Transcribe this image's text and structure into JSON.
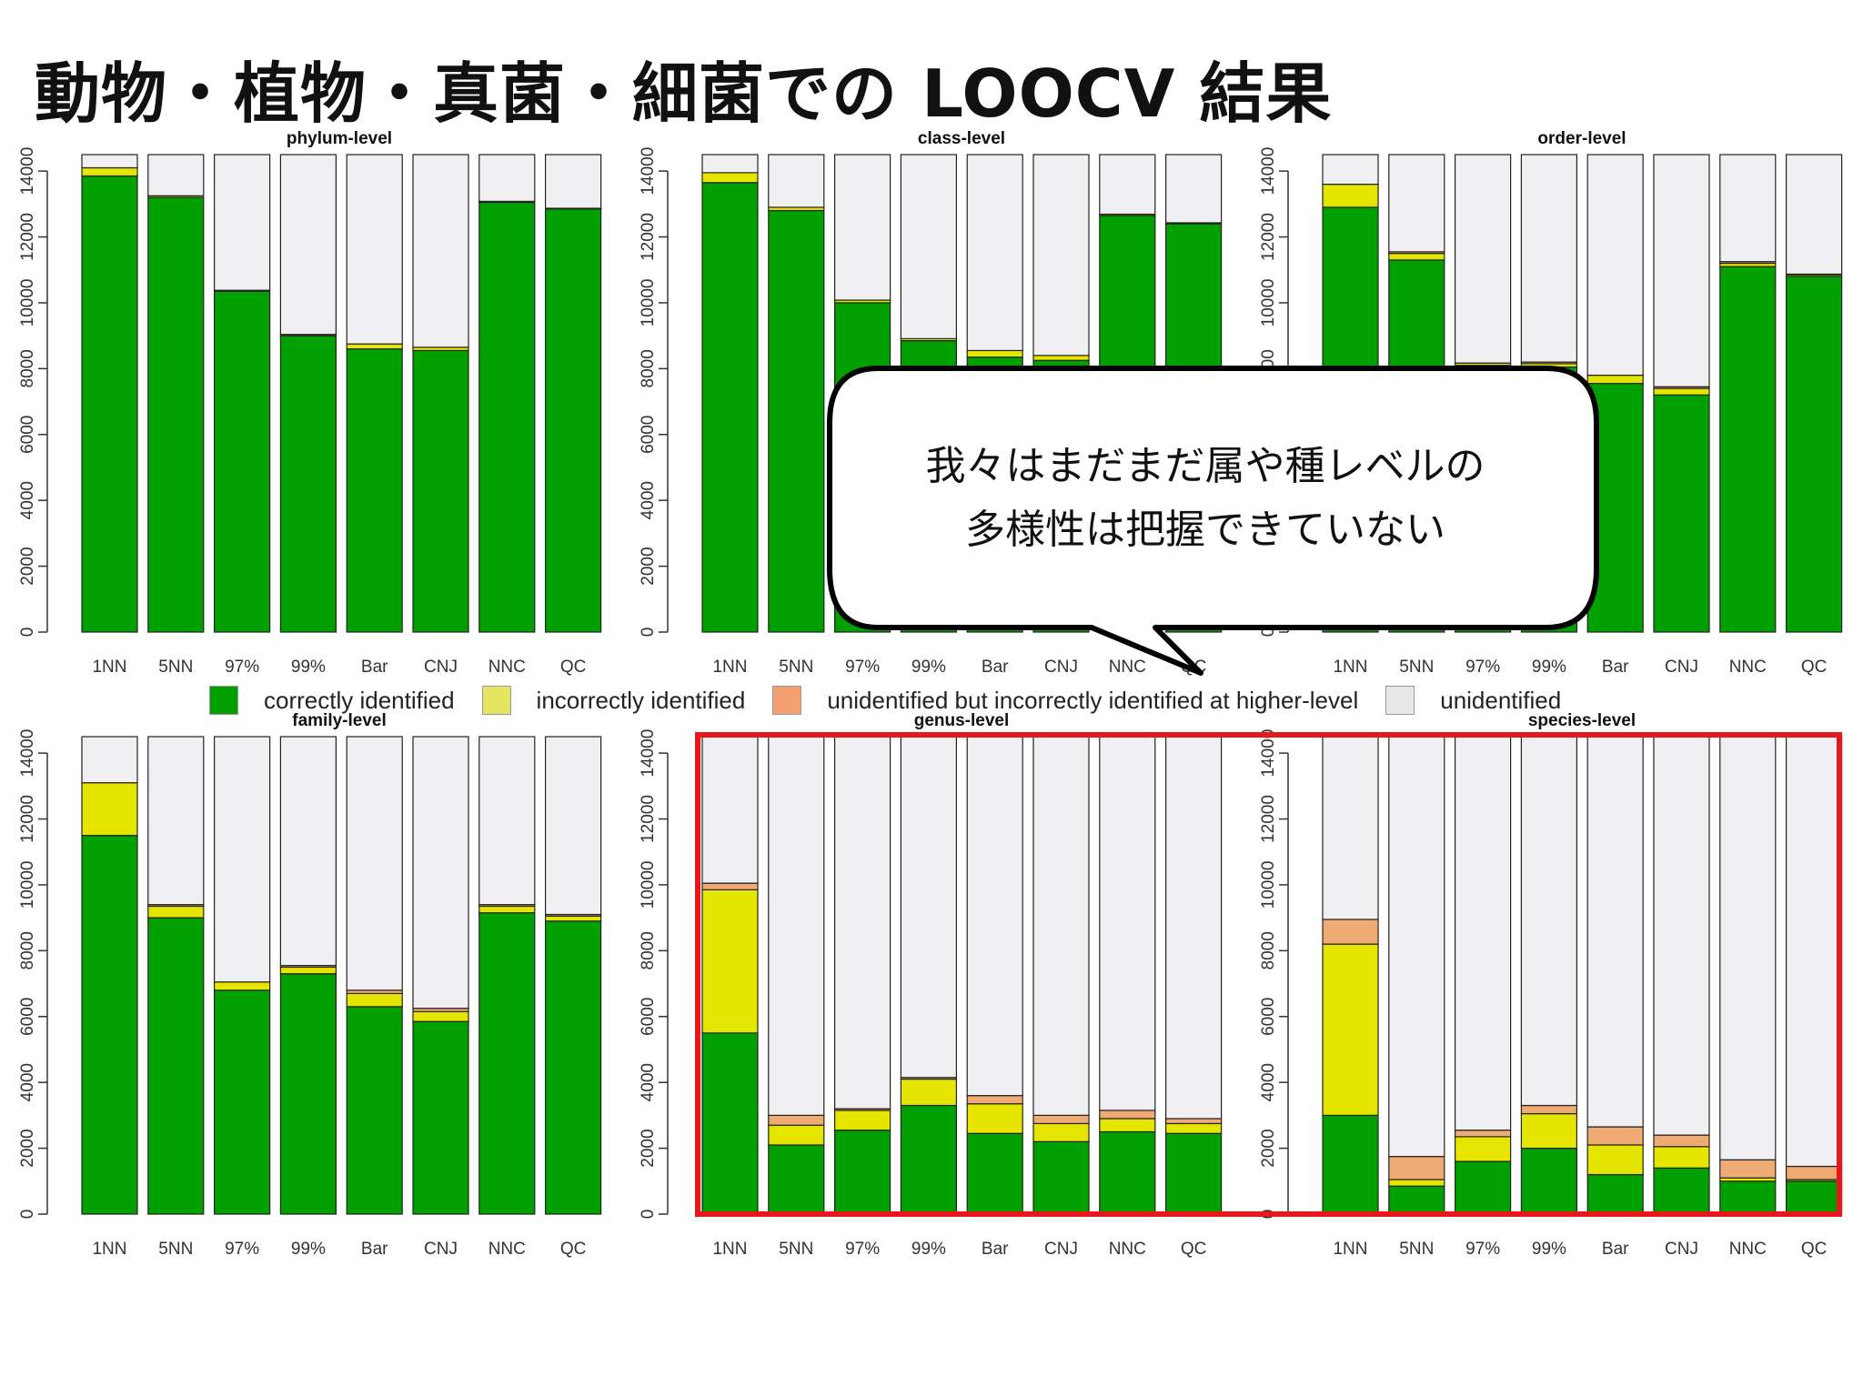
{
  "slide": {
    "title": "動物・植物・真菌・細菌での LOOCV 結果",
    "callout_lines": [
      "我々はまだまだ属や種レベルの",
      "多様性は把握できていない"
    ],
    "highlight_color": "#e8171b"
  },
  "legend": [
    {
      "label": "correctly identified",
      "color": "#00a000"
    },
    {
      "label": "incorrectly identified",
      "color": "#e5e500"
    },
    {
      "label": "unidentified but incorrectly identified at higher-level",
      "color": "#f0aa73"
    },
    {
      "label": "unidentified",
      "color": "#f0eff2"
    }
  ],
  "chart_data": [
    {
      "type": "bar",
      "stacked": true,
      "title": "phylum-level",
      "categories": [
        "1NN",
        "5NN",
        "97%",
        "99%",
        "Bar",
        "CNJ",
        "NNC",
        "QC"
      ],
      "ylim": [
        0,
        14500
      ],
      "yticks": [
        "0",
        "2000",
        "4000",
        "6000",
        "8000",
        "10000",
        "12000",
        "14000"
      ],
      "series": [
        {
          "name": "correctly identified",
          "values": [
            13850,
            13200,
            10350,
            9000,
            8600,
            8550,
            13050,
            12850
          ]
        },
        {
          "name": "incorrectly identified",
          "values": [
            250,
            50,
            30,
            40,
            150,
            100,
            30,
            20
          ]
        },
        {
          "name": "unidentified but incorrectly identified at higher-level",
          "values": [
            0,
            0,
            0,
            0,
            0,
            0,
            0,
            0
          ]
        },
        {
          "name": "unidentified",
          "values": [
            400,
            1250,
            4120,
            5460,
            5750,
            5850,
            1420,
            1630
          ]
        }
      ]
    },
    {
      "type": "bar",
      "stacked": true,
      "title": "class-level",
      "categories": [
        "1NN",
        "5NN",
        "97%",
        "99%",
        "Bar",
        "CNJ",
        "NNC",
        "QC"
      ],
      "ylim": [
        0,
        14500
      ],
      "yticks": [
        "0",
        "2000",
        "4000",
        "6000",
        "8000",
        "10000",
        "12000",
        "14000"
      ],
      "series": [
        {
          "name": "correctly identified",
          "values": [
            13650,
            12800,
            10000,
            8850,
            8350,
            8250,
            12650,
            12400
          ]
        },
        {
          "name": "incorrectly identified",
          "values": [
            300,
            100,
            80,
            60,
            200,
            150,
            40,
            30
          ]
        },
        {
          "name": "unidentified but incorrectly identified at higher-level",
          "values": [
            0,
            0,
            0,
            0,
            0,
            0,
            0,
            0
          ]
        },
        {
          "name": "unidentified",
          "values": [
            550,
            1600,
            4420,
            5590,
            5950,
            6100,
            1810,
            2070
          ]
        }
      ]
    },
    {
      "type": "bar",
      "stacked": true,
      "title": "order-level",
      "categories": [
        "1NN",
        "5NN",
        "97%",
        "99%",
        "Bar",
        "CNJ",
        "NNC",
        "QC"
      ],
      "ylim": [
        0,
        14500
      ],
      "yticks": [
        "0",
        "2000",
        "4000",
        "6000",
        "8000",
        "10000",
        "12000",
        "14000"
      ],
      "series": [
        {
          "name": "correctly identified",
          "values": [
            12900,
            11300,
            8100,
            8050,
            7550,
            7200,
            11100,
            10800
          ]
        },
        {
          "name": "incorrectly identified",
          "values": [
            700,
            200,
            70,
            100,
            250,
            200,
            100,
            50
          ]
        },
        {
          "name": "unidentified but incorrectly identified at higher-level",
          "values": [
            0,
            50,
            0,
            50,
            0,
            50,
            50,
            20
          ]
        },
        {
          "name": "unidentified",
          "values": [
            900,
            2950,
            6330,
            6300,
            6700,
            7050,
            3250,
            3630
          ]
        }
      ]
    },
    {
      "type": "bar",
      "stacked": true,
      "title": "family-level",
      "categories": [
        "1NN",
        "5NN",
        "97%",
        "99%",
        "Bar",
        "CNJ",
        "NNC",
        "QC"
      ],
      "ylim": [
        0,
        14500
      ],
      "yticks": [
        "0",
        "2000",
        "4000",
        "6000",
        "8000",
        "10000",
        "12000",
        "14000"
      ],
      "series": [
        {
          "name": "correctly identified",
          "values": [
            11500,
            9000,
            6800,
            7300,
            6300,
            5850,
            9150,
            8900
          ]
        },
        {
          "name": "incorrectly identified",
          "values": [
            1600,
            350,
            250,
            200,
            400,
            300,
            200,
            150
          ]
        },
        {
          "name": "unidentified but incorrectly identified at higher-level",
          "values": [
            0,
            50,
            0,
            50,
            100,
            100,
            50,
            50
          ]
        },
        {
          "name": "unidentified",
          "values": [
            1400,
            5100,
            7450,
            6950,
            7700,
            8250,
            5100,
            5400
          ]
        }
      ]
    },
    {
      "type": "bar",
      "stacked": true,
      "title": "genus-level",
      "categories": [
        "1NN",
        "5NN",
        "97%",
        "99%",
        "Bar",
        "CNJ",
        "NNC",
        "QC"
      ],
      "ylim": [
        0,
        14500
      ],
      "yticks": [
        "0",
        "2000",
        "4000",
        "6000",
        "8000",
        "10000",
        "12000",
        "14000"
      ],
      "series": [
        {
          "name": "correctly identified",
          "values": [
            5500,
            2100,
            2550,
            3300,
            2450,
            2200,
            2500,
            2450
          ]
        },
        {
          "name": "incorrectly identified",
          "values": [
            4350,
            600,
            600,
            800,
            900,
            550,
            400,
            300
          ]
        },
        {
          "name": "unidentified but incorrectly identified at higher-level",
          "values": [
            200,
            300,
            50,
            50,
            250,
            250,
            250,
            150
          ]
        },
        {
          "name": "unidentified",
          "values": [
            4450,
            11500,
            11300,
            10350,
            10900,
            11500,
            11350,
            11600
          ]
        }
      ]
    },
    {
      "type": "bar",
      "stacked": true,
      "title": "species-level",
      "categories": [
        "1NN",
        "5NN",
        "97%",
        "99%",
        "Bar",
        "CNJ",
        "NNC",
        "QC"
      ],
      "ylim": [
        0,
        14500
      ],
      "yticks": [
        "0",
        "2000",
        "4000",
        "6000",
        "8000",
        "10000",
        "12000",
        "14000"
      ],
      "series": [
        {
          "name": "correctly identified",
          "values": [
            3000,
            850,
            1600,
            2000,
            1200,
            1400,
            1000,
            1000
          ]
        },
        {
          "name": "incorrectly identified",
          "values": [
            5200,
            200,
            750,
            1050,
            900,
            650,
            100,
            50
          ]
        },
        {
          "name": "unidentified but incorrectly identified at higher-level",
          "values": [
            750,
            700,
            200,
            250,
            550,
            350,
            550,
            400
          ]
        },
        {
          "name": "unidentified",
          "values": [
            5550,
            12750,
            11950,
            11200,
            11850,
            12100,
            12850,
            13050
          ]
        }
      ]
    }
  ]
}
